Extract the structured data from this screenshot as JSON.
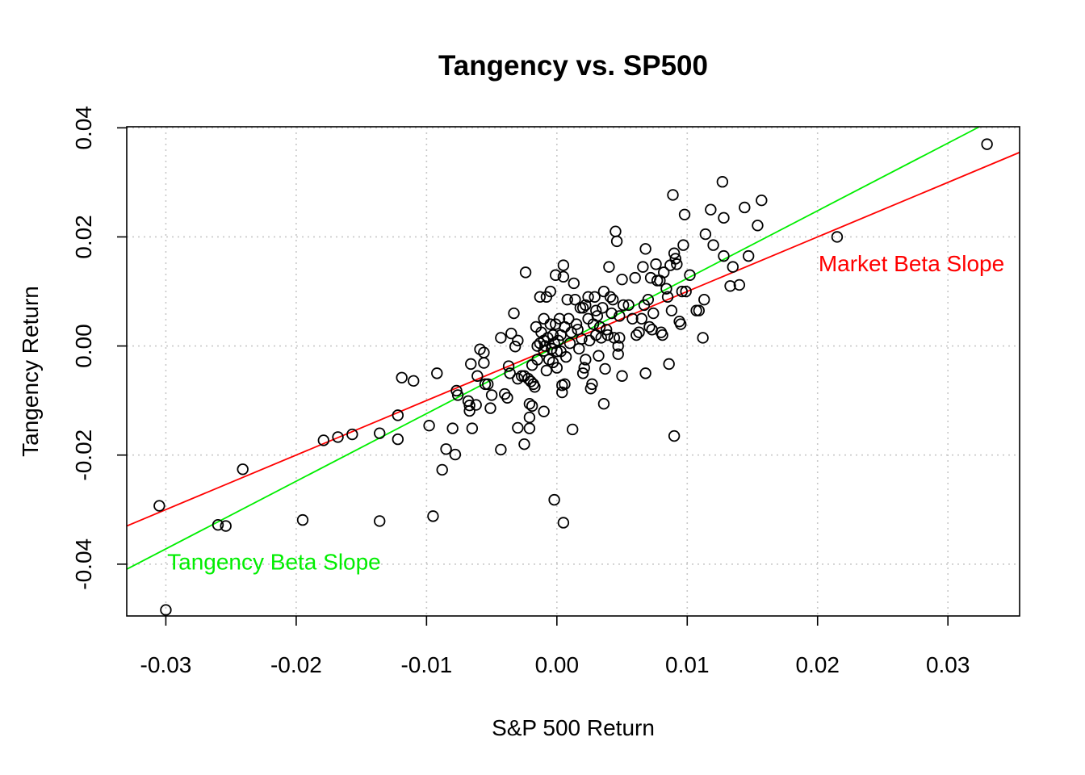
{
  "chart_data": {
    "type": "scatter",
    "title": "Tangency vs. SP500",
    "xlabel": "S&P 500 Return",
    "ylabel": "Tangency Return",
    "xlim": [
      -0.033,
      0.0355
    ],
    "ylim": [
      -0.0495,
      0.0402
    ],
    "x_ticks": [
      "-0.03",
      "-0.02",
      "-0.01",
      "0.00",
      "0.01",
      "0.02",
      "0.03"
    ],
    "y_ticks": [
      "-0.04",
      "-0.02",
      "0.00",
      "0.02",
      "0.04"
    ],
    "grid": true,
    "colors": {
      "points": "#000000",
      "market_line": "#ff0000",
      "tangency_line": "#00ee00",
      "grid": "#c8c8c8"
    },
    "lines": [
      {
        "name": "Market Beta Slope",
        "color": "#ff0000",
        "intercept": 0.0,
        "slope": 1.0
      },
      {
        "name": "Tangency Beta Slope",
        "color": "#00ee00",
        "intercept": 0.0,
        "slope": 1.24
      }
    ],
    "annotations": [
      {
        "text": "Market Beta Slope",
        "color": "#ff0000",
        "x": 0.0272,
        "y": 0.0148
      },
      {
        "text": "Tangency Beta Slope",
        "color": "#00ee00",
        "x": -0.0217,
        "y": -0.0399
      }
    ],
    "points": [
      [
        -0.0305,
        -0.0293
      ],
      [
        -0.03,
        -0.0484
      ],
      [
        -0.026,
        -0.0328
      ],
      [
        -0.0254,
        -0.033
      ],
      [
        -0.0241,
        -0.0226
      ],
      [
        -0.0195,
        -0.0319
      ],
      [
        -0.0179,
        -0.0173
      ],
      [
        -0.0168,
        -0.0167
      ],
      [
        -0.0157,
        -0.0162
      ],
      [
        -0.0136,
        -0.016
      ],
      [
        -0.0136,
        -0.0321
      ],
      [
        -0.0122,
        -0.0127
      ],
      [
        -0.0122,
        -0.0171
      ],
      [
        -0.0119,
        -0.0058
      ],
      [
        -0.011,
        -0.0064
      ],
      [
        -0.0098,
        -0.0146
      ],
      [
        -0.0095,
        -0.0312
      ],
      [
        -0.0092,
        -0.005
      ],
      [
        -0.0088,
        -0.0227
      ],
      [
        -0.0085,
        -0.0189
      ],
      [
        -0.008,
        -0.0151
      ],
      [
        -0.0078,
        -0.0199
      ],
      [
        -0.0077,
        -0.0082
      ],
      [
        -0.0076,
        -0.009
      ],
      [
        -0.0068,
        -0.0101
      ],
      [
        -0.0067,
        -0.0109
      ],
      [
        -0.0067,
        -0.0119
      ],
      [
        -0.0066,
        -0.0033
      ],
      [
        -0.0065,
        -0.0151
      ],
      [
        -0.0062,
        -0.0108
      ],
      [
        -0.0061,
        -0.0055
      ],
      [
        -0.0059,
        -0.0006
      ],
      [
        -0.0056,
        -0.0012
      ],
      [
        -0.0056,
        -0.0031
      ],
      [
        -0.0055,
        -0.007
      ],
      [
        -0.0053,
        -0.007
      ],
      [
        -0.0051,
        -0.0114
      ],
      [
        -0.005,
        -0.009
      ],
      [
        -0.0043,
        -0.019
      ],
      [
        -0.0043,
        0.0015
      ],
      [
        -0.004,
        -0.0088
      ],
      [
        -0.0038,
        -0.0095
      ],
      [
        -0.0037,
        -0.0037
      ],
      [
        -0.0036,
        -0.005
      ],
      [
        -0.0035,
        0.0023
      ],
      [
        -0.0033,
        0.006
      ],
      [
        -0.0032,
        -0.0001
      ],
      [
        -0.003,
        0.001
      ],
      [
        -0.003,
        -0.006
      ],
      [
        -0.003,
        -0.015
      ],
      [
        -0.0027,
        -0.0055
      ],
      [
        -0.0025,
        -0.0055
      ],
      [
        -0.0025,
        -0.018
      ],
      [
        -0.0024,
        0.0135
      ],
      [
        -0.0022,
        -0.006
      ],
      [
        -0.0021,
        -0.0106
      ],
      [
        -0.0021,
        -0.0131
      ],
      [
        -0.0021,
        -0.0151
      ],
      [
        -0.002,
        -0.0065
      ],
      [
        -0.0019,
        -0.0035
      ],
      [
        -0.0019,
        -0.011
      ],
      [
        -0.0018,
        -0.007
      ],
      [
        -0.0017,
        -0.0075
      ],
      [
        -0.0016,
        0.0035
      ],
      [
        -0.0015,
        -0.0025
      ],
      [
        -0.0015,
        0.0
      ],
      [
        -0.0013,
        0.0005
      ],
      [
        -0.0013,
        0.009
      ],
      [
        -0.0012,
        0.0025
      ],
      [
        -0.001,
        -0.0009
      ],
      [
        -0.001,
        0.001
      ],
      [
        -0.001,
        0.005
      ],
      [
        -0.001,
        -0.012
      ],
      [
        -0.0009,
        0.0
      ],
      [
        -0.0008,
        0.009
      ],
      [
        -0.0008,
        -0.0045
      ],
      [
        -0.0007,
        0.0015
      ],
      [
        -0.0006,
        -0.0025
      ],
      [
        -0.0005,
        0.01
      ],
      [
        -0.0005,
        0.004
      ],
      [
        -0.0004,
        -0.0005
      ],
      [
        -0.0003,
        0.002
      ],
      [
        -0.0003,
        -0.003
      ],
      [
        -0.0002,
        0.0005
      ],
      [
        -0.0002,
        -0.0282
      ],
      [
        -0.0001,
        0.013
      ],
      [
        -0.0001,
        0.004
      ],
      [
        0.0,
        -0.001
      ],
      [
        0.0,
        -0.004
      ],
      [
        0.0001,
        0.001
      ],
      [
        0.0002,
        0.005
      ],
      [
        0.0003,
        -0.001
      ],
      [
        0.0003,
        0.002
      ],
      [
        0.0004,
        -0.0085
      ],
      [
        0.0004,
        -0.0072
      ],
      [
        0.0005,
        0.0148
      ],
      [
        0.0005,
        -0.0324
      ],
      [
        0.0005,
        0.0127
      ],
      [
        0.0006,
        0.0035
      ],
      [
        0.0006,
        -0.007
      ],
      [
        0.0007,
        -0.002
      ],
      [
        0.0008,
        0.0085
      ],
      [
        0.0009,
        0.005
      ],
      [
        0.001,
        0.0005
      ],
      [
        0.0011,
        0.0025
      ],
      [
        0.0012,
        -0.0153
      ],
      [
        0.0013,
        0.0115
      ],
      [
        0.0014,
        0.0085
      ],
      [
        0.0015,
        0.004
      ],
      [
        0.0016,
        0.003
      ],
      [
        0.0017,
        -0.0005
      ],
      [
        0.0018,
        0.007
      ],
      [
        0.0019,
        0.0013
      ],
      [
        0.002,
        -0.005
      ],
      [
        0.002,
        0.007
      ],
      [
        0.0021,
        -0.004
      ],
      [
        0.0022,
        0.0075
      ],
      [
        0.0022,
        -0.0025
      ],
      [
        0.0024,
        0.005
      ],
      [
        0.0024,
        0.009
      ],
      [
        0.0025,
        0.001
      ],
      [
        0.0026,
        -0.0078
      ],
      [
        0.0027,
        -0.007
      ],
      [
        0.0028,
        0.004
      ],
      [
        0.0029,
        0.009
      ],
      [
        0.003,
        0.002
      ],
      [
        0.003,
        0.0065
      ],
      [
        0.0031,
        0.0055
      ],
      [
        0.0032,
        -0.0018
      ],
      [
        0.0033,
        0.0035
      ],
      [
        0.0034,
        0.0015
      ],
      [
        0.0035,
        0.007
      ],
      [
        0.0036,
        -0.0106
      ],
      [
        0.0036,
        0.01
      ],
      [
        0.0037,
        -0.0042
      ],
      [
        0.0038,
        0.003
      ],
      [
        0.0039,
        0.002
      ],
      [
        0.004,
        0.0145
      ],
      [
        0.0041,
        0.009
      ],
      [
        0.0042,
        0.006
      ],
      [
        0.0043,
        0.0085
      ],
      [
        0.0044,
        0.0015
      ],
      [
        0.0045,
        0.021
      ],
      [
        0.0046,
        0.0192
      ],
      [
        0.0047,
        0.0
      ],
      [
        0.0047,
        -0.0015
      ],
      [
        0.0048,
        0.0055
      ],
      [
        0.0048,
        0.0015
      ],
      [
        0.005,
        0.0122
      ],
      [
        0.005,
        -0.0055
      ],
      [
        0.0051,
        0.0075
      ],
      [
        0.0055,
        0.0075
      ],
      [
        0.0058,
        0.005
      ],
      [
        0.006,
        0.0125
      ],
      [
        0.0061,
        0.002
      ],
      [
        0.0063,
        0.0025
      ],
      [
        0.0065,
        0.005
      ],
      [
        0.0066,
        0.0145
      ],
      [
        0.0067,
        0.0075
      ],
      [
        0.0068,
        0.0178
      ],
      [
        0.0068,
        -0.005
      ],
      [
        0.007,
        0.0085
      ],
      [
        0.0071,
        0.0035
      ],
      [
        0.0072,
        0.0125
      ],
      [
        0.0073,
        0.003
      ],
      [
        0.0074,
        0.006
      ],
      [
        0.0076,
        0.015
      ],
      [
        0.0077,
        0.012
      ],
      [
        0.0079,
        0.012
      ],
      [
        0.008,
        0.0025
      ],
      [
        0.0081,
        0.002
      ],
      [
        0.0082,
        0.0135
      ],
      [
        0.0084,
        0.0105
      ],
      [
        0.0085,
        0.009
      ],
      [
        0.0086,
        -0.0033
      ],
      [
        0.0087,
        0.0148
      ],
      [
        0.0088,
        0.0065
      ],
      [
        0.0089,
        0.0277
      ],
      [
        0.009,
        0.017
      ],
      [
        0.009,
        -0.0165
      ],
      [
        0.0091,
        0.016
      ],
      [
        0.0092,
        0.015
      ],
      [
        0.0094,
        0.0045
      ],
      [
        0.0095,
        0.004
      ],
      [
        0.0096,
        0.01
      ],
      [
        0.0097,
        0.0185
      ],
      [
        0.0098,
        0.0241
      ],
      [
        0.0099,
        0.01
      ],
      [
        0.0102,
        0.013
      ],
      [
        0.0107,
        0.0065
      ],
      [
        0.0109,
        0.0065
      ],
      [
        0.0112,
        0.0015
      ],
      [
        0.0113,
        0.0085
      ],
      [
        0.0114,
        0.0205
      ],
      [
        0.0118,
        0.025
      ],
      [
        0.012,
        0.0185
      ],
      [
        0.0127,
        0.0301
      ],
      [
        0.0128,
        0.0235
      ],
      [
        0.0128,
        0.0165
      ],
      [
        0.0133,
        0.011
      ],
      [
        0.0135,
        0.0145
      ],
      [
        0.014,
        0.0112
      ],
      [
        0.0144,
        0.0254
      ],
      [
        0.0147,
        0.0165
      ],
      [
        0.0154,
        0.0221
      ],
      [
        0.0157,
        0.0267
      ],
      [
        0.0215,
        0.02
      ],
      [
        0.033,
        0.037
      ]
    ]
  }
}
